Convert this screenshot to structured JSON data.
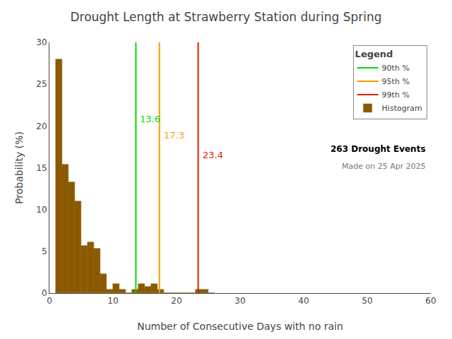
{
  "chart_data": {
    "type": "histogram",
    "title": "Drought Length at Strawberry Station during Spring",
    "xlabel": "Number of Consecutive Days with no rain",
    "ylabel": "Probability (%)",
    "xlim": [
      0,
      60
    ],
    "ylim": [
      0,
      30
    ],
    "xticks": [
      0,
      10,
      20,
      30,
      40,
      50,
      60
    ],
    "yticks": [
      0,
      5,
      10,
      15,
      20,
      25,
      30
    ],
    "grid": false,
    "legend": "upper right",
    "legend_title": "Legend",
    "bins": [
      1,
      2,
      3,
      4,
      5,
      6,
      7,
      8,
      9,
      10,
      11,
      12,
      13,
      14,
      15,
      16,
      17,
      18,
      19,
      20,
      21,
      22,
      23,
      24,
      25,
      26
    ],
    "series": [
      {
        "name": "Histogram",
        "type": "histogram",
        "color": "#8B5A00",
        "values": [
          28.0,
          15.4,
          13.3,
          11.0,
          5.7,
          6.1,
          5.3,
          2.3,
          0.4,
          1.1,
          0.4,
          0.0,
          0.4,
          1.1,
          0.8,
          1.1,
          0.4,
          0.0,
          0.0,
          0.0,
          0.0,
          0.0,
          0.4,
          0.4,
          0.0
        ]
      },
      {
        "name": "90th %",
        "type": "vline",
        "color": "#00dd00",
        "x": 13.6,
        "data_labels": true
      },
      {
        "name": "95th %",
        "type": "vline",
        "color": "#ff9900",
        "x": 17.3,
        "data_labels": true
      },
      {
        "name": "99th %",
        "type": "vline",
        "color": "#dd2200",
        "x": 23.4,
        "data_labels": true
      }
    ],
    "annotations": [
      "263 Drought Events",
      "Made on 25 Apr 2025"
    ]
  }
}
